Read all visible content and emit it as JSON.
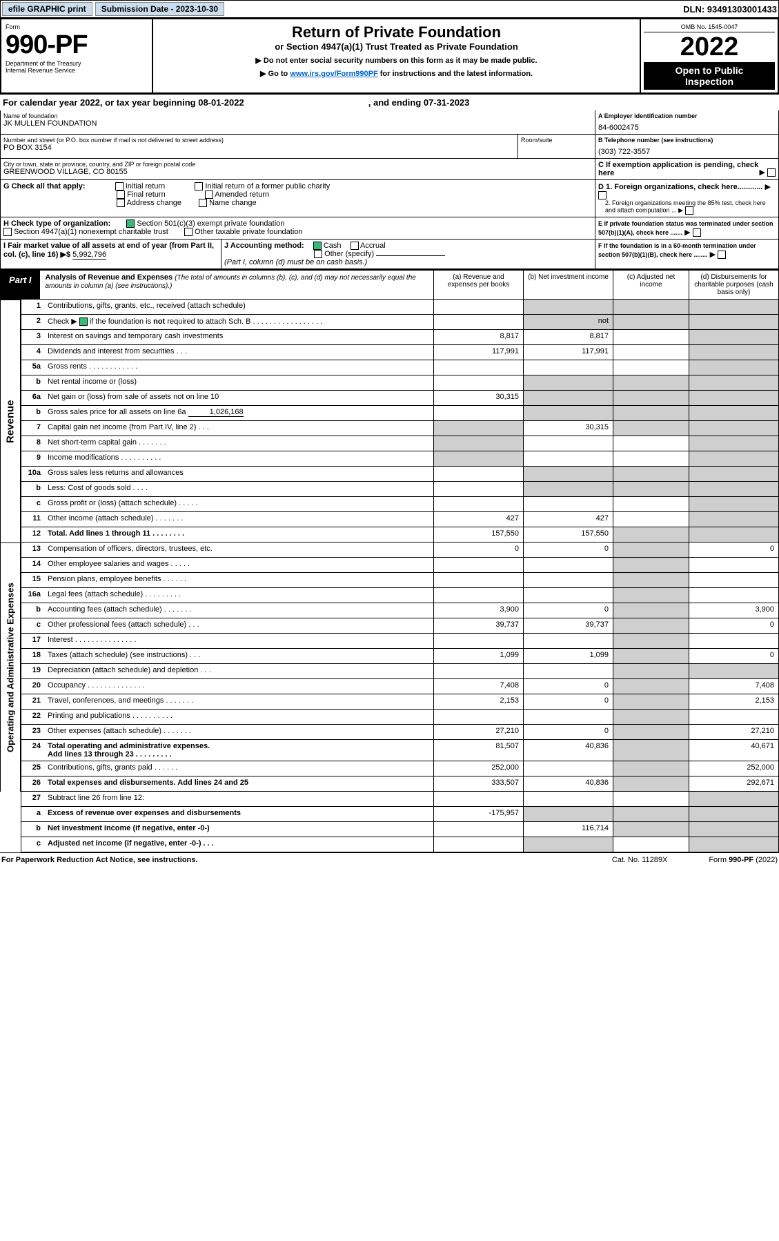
{
  "topbar": {
    "efile": "efile GRAPHIC print",
    "sub_label": "Submission Date - 2023-10-30",
    "dln": "DLN: 93491303001433"
  },
  "header": {
    "form_word": "Form",
    "form_no": "990-PF",
    "dept": "Department of the Treasury",
    "irs": "Internal Revenue Service",
    "title": "Return of Private Foundation",
    "subtitle": "or Section 4947(a)(1) Trust Treated as Private Foundation",
    "instr1": "▶ Do not enter social security numbers on this form as it may be made public.",
    "instr2_pre": "▶ Go to ",
    "instr2_link": "www.irs.gov/Form990PF",
    "instr2_post": " for instructions and the latest information.",
    "omb": "OMB No. 1545-0047",
    "year": "2022",
    "open1": "Open to Public",
    "open2": "Inspection"
  },
  "cal": {
    "text1": "For calendar year 2022, or tax year beginning 08-01-2022",
    "text2": ", and ending 07-31-2023"
  },
  "ident": {
    "name_lbl": "Name of foundation",
    "name": "JK MULLEN FOUNDATION",
    "ein_lbl": "A Employer identification number",
    "ein": "84-6002475",
    "addr_lbl": "Number and street (or P.O. box number if mail is not delivered to street address)",
    "addr": "PO BOX 3154",
    "room_lbl": "Room/suite",
    "tel_lbl": "B Telephone number (see instructions)",
    "tel": "(303) 722-3557",
    "city_lbl": "City or town, state or province, country, and ZIP or foreign postal code",
    "city": "GREENWOOD VILLAGE, CO  80155",
    "c_lbl": "C If exemption application is pending, check here",
    "g_lbl": "G Check all that apply:",
    "g1": "Initial return",
    "g2": "Final return",
    "g3": "Address change",
    "g4": "Initial return of a former public charity",
    "g5": "Amended return",
    "g6": "Name change",
    "d1": "D 1. Foreign organizations, check here............",
    "d2": "2. Foreign organizations meeting the 85% test, check here and attach computation ...",
    "h_lbl": "H Check type of organization:",
    "h1": "Section 501(c)(3) exempt private foundation",
    "h2": "Section 4947(a)(1) nonexempt charitable trust",
    "h3": "Other taxable private foundation",
    "e_lbl": "E If private foundation status was terminated under section 507(b)(1)(A), check here .......",
    "i_lbl": "I Fair market value of all assets at end of year (from Part II, col. (c), line 16) ▶$",
    "i_val": "5,992,796",
    "j_lbl": "J Accounting method:",
    "j1": "Cash",
    "j2": "Accrual",
    "j3": "Other (specify)",
    "j_note": "(Part I, column (d) must be on cash basis.)",
    "f_lbl": "F If the foundation is in a 60-month termination under section 507(b)(1)(B), check here ........"
  },
  "part1": {
    "tag": "Part I",
    "title": "Analysis of Revenue and Expenses",
    "title_note": " (The total of amounts in columns (b), (c), and (d) may not necessarily equal the amounts in column (a) (see instructions).)",
    "ca": "(a) Revenue and expenses per books",
    "cb": "(b) Net investment income",
    "cc": "(c) Adjusted net income",
    "cd": "(d) Disbursements for charitable purposes (cash basis only)"
  },
  "sidelabels": {
    "rev": "Revenue",
    "exp": "Operating and Administrative Expenses"
  },
  "lines": {
    "1": {
      "n": "1",
      "d": "Contributions, gifts, grants, etc., received (attach schedule)"
    },
    "2": {
      "n": "2",
      "pre": "Check ▶ ",
      "d": " if the foundation is ",
      "b": "not",
      "d2": " required to attach Sch. B   .  .  .  .  .  .  .  .  .  .  .  .  .  .  .  .  ."
    },
    "3": {
      "n": "3",
      "d": "Interest on savings and temporary cash investments",
      "a": "8,817",
      "b": "8,817"
    },
    "4": {
      "n": "4",
      "d": "Dividends and interest from securities    .   .   .",
      "a": "117,991",
      "b": "117,991"
    },
    "5a": {
      "n": "5a",
      "d": "Gross rents   .   .   .   .   .   .   .   .   .   .   .   ."
    },
    "5b": {
      "n": "b",
      "d": "Net rental income or (loss)"
    },
    "6a": {
      "n": "6a",
      "d": "Net gain or (loss) from sale of assets not on line 10",
      "a": "30,315"
    },
    "6b": {
      "n": "b",
      "d": "Gross sales price for all assets on line 6a",
      "v": "1,026,168"
    },
    "7": {
      "n": "7",
      "d": "Capital gain net income (from Part IV, line 2)   .   .   .",
      "b": "30,315"
    },
    "8": {
      "n": "8",
      "d": "Net short-term capital gain   .   .   .   .   .   .   ."
    },
    "9": {
      "n": "9",
      "d": "Income modifications  .   .   .   .   .   .   .   .   .   ."
    },
    "10a": {
      "n": "10a",
      "d": "Gross sales less returns and allowances"
    },
    "10b": {
      "n": "b",
      "d": "Less: Cost of goods sold    .   .   .   ."
    },
    "10c": {
      "n": "c",
      "d": "Gross profit or (loss) (attach schedule)    .   .   .   .   ."
    },
    "11": {
      "n": "11",
      "d": "Other income (attach schedule)   .   .   .   .   .   .   .",
      "a": "427",
      "b": "427"
    },
    "12": {
      "n": "12",
      "d": "Total. Add lines 1 through 11   .   .   .   .   .   .   .   .",
      "a": "157,550",
      "b": "157,550",
      "bold": true
    },
    "13": {
      "n": "13",
      "d": "Compensation of officers, directors, trustees, etc.",
      "a": "0",
      "b": "0",
      "dd": "0"
    },
    "14": {
      "n": "14",
      "d": "Other employee salaries and wages   .   .   .   .   ."
    },
    "15": {
      "n": "15",
      "d": "Pension plans, employee benefits  .   .   .   .   .   ."
    },
    "16a": {
      "n": "16a",
      "d": "Legal fees (attach schedule) .   .   .   .   .   .   .   .   ."
    },
    "16b": {
      "n": "b",
      "d": "Accounting fees (attach schedule)  .   .   .   .   .   .   .",
      "a": "3,900",
      "b": "0",
      "dd": "3,900"
    },
    "16c": {
      "n": "c",
      "d": "Other professional fees (attach schedule)    .   .   .",
      "a": "39,737",
      "b": "39,737",
      "dd": "0"
    },
    "17": {
      "n": "17",
      "d": "Interest  .   .   .   .   .   .   .   .   .   .   .   .   .   .   ."
    },
    "18": {
      "n": "18",
      "d": "Taxes (attach schedule) (see instructions)    .   .   .",
      "a": "1,099",
      "b": "1,099",
      "dd": "0"
    },
    "19": {
      "n": "19",
      "d": "Depreciation (attach schedule) and depletion    .   .   ."
    },
    "20": {
      "n": "20",
      "d": "Occupancy .   .   .   .   .   .   .   .   .   .   .   .   .   .",
      "a": "7,408",
      "b": "0",
      "dd": "7,408"
    },
    "21": {
      "n": "21",
      "d": "Travel, conferences, and meetings  .   .   .   .   .   .   .",
      "a": "2,153",
      "b": "0",
      "dd": "2,153"
    },
    "22": {
      "n": "22",
      "d": "Printing and publications  .   .   .   .   .   .   .   .   .   ."
    },
    "23": {
      "n": "23",
      "d": "Other expenses (attach schedule)  .   .   .   .   .   .   .",
      "a": "27,210",
      "b": "0",
      "dd": "27,210"
    },
    "24": {
      "n": "24",
      "d": "Total operating and administrative expenses.",
      "d2": "Add lines 13 through 23   .   .   .   .   .   .   .   .   .",
      "a": "81,507",
      "b": "40,836",
      "dd": "40,671",
      "bold": true
    },
    "25": {
      "n": "25",
      "d": "Contributions, gifts, grants paid    .   .   .   .   .   .",
      "a": "252,000",
      "dd": "252,000"
    },
    "26": {
      "n": "26",
      "d": "Total expenses and disbursements. Add lines 24 and 25",
      "a": "333,507",
      "b": "40,836",
      "dd": "292,671",
      "bold": true
    },
    "27": {
      "n": "27",
      "d": "Subtract line 26 from line 12:"
    },
    "27a": {
      "n": "a",
      "d": "Excess of revenue over expenses and disbursements",
      "a": "-175,957",
      "bold": true
    },
    "27b": {
      "n": "b",
      "d": "Net investment income (if negative, enter -0-)",
      "b": "116,714",
      "bold": true
    },
    "27c": {
      "n": "c",
      "d": "Adjusted net income (if negative, enter -0-)   .   .   .",
      "bold": true
    }
  },
  "foot": {
    "left": "For Paperwork Reduction Act Notice, see instructions.",
    "mid": "Cat. No. 11289X",
    "right": "Form 990-PF (2022)"
  }
}
